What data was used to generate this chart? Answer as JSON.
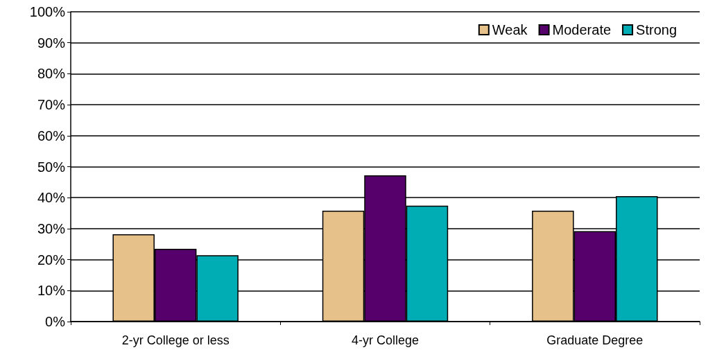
{
  "chart_data": {
    "type": "bar",
    "categories": [
      "2-yr College or less",
      "4-yr College",
      "Graduate Degree"
    ],
    "series": [
      {
        "name": "Weak",
        "color": "#e6c28a",
        "values": [
          28.2,
          35.8,
          35.8
        ]
      },
      {
        "name": "Moderate",
        "color": "#55006b",
        "values": [
          23.5,
          47.2,
          29.2
        ]
      },
      {
        "name": "Strong",
        "color": "#00adb5",
        "values": [
          21.4,
          37.4,
          40.5
        ]
      }
    ],
    "ylim": [
      0,
      100
    ],
    "yticks": [
      {
        "value": 0,
        "label": "0%"
      },
      {
        "value": 10,
        "label": "10%"
      },
      {
        "value": 20,
        "label": "20%"
      },
      {
        "value": 30,
        "label": "30%"
      },
      {
        "value": 40,
        "label": "40%"
      },
      {
        "value": 50,
        "label": "50%"
      },
      {
        "value": 60,
        "label": "60%"
      },
      {
        "value": 70,
        "label": "70%"
      },
      {
        "value": 80,
        "label": "80%"
      },
      {
        "value": 90,
        "label": "90%"
      },
      {
        "value": 100,
        "label": "100%"
      }
    ],
    "grid": "y",
    "legend": "top right"
  }
}
